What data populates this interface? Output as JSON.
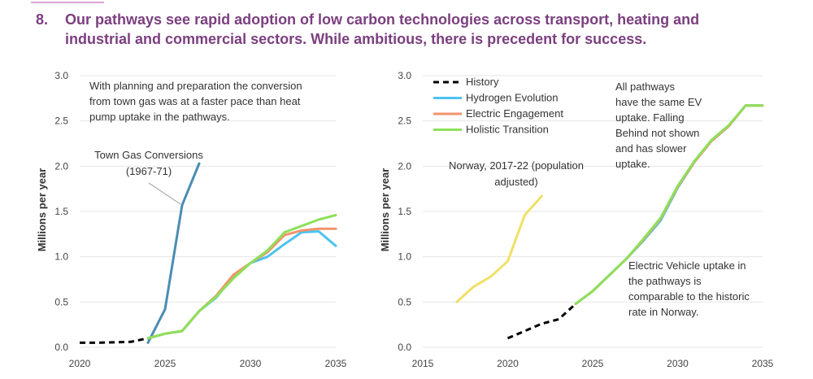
{
  "heading": {
    "number": "8.",
    "text": "Our pathways see rapid adoption of low carbon technologies across transport, heating and industrial and commercial sectors. While ambitious, there is precedent for success."
  },
  "colors": {
    "history": "#000000",
    "town_gas": "#4a8db3",
    "hydrogen": "#4cc3f0",
    "electric": "#f2936b",
    "holistic": "#8ee05a",
    "norway": "#f0e066",
    "grid": "#e6e6e6"
  },
  "chart_data": [
    {
      "type": "line",
      "ylabel": "Millions per year",
      "xlim": [
        2020,
        2035
      ],
      "ylim": [
        0,
        3
      ],
      "xticks": [
        "2020",
        "2025",
        "2030",
        "2035"
      ],
      "yticks": [
        "0.0",
        "0.5",
        "1.0",
        "1.5",
        "2.0",
        "2.5",
        "3.0"
      ],
      "annotations": [
        "With planning and preparation the conversion",
        "from town gas was at a faster pace than heat",
        "pump uptake in the pathways."
      ],
      "town_gas_label": [
        "Town Gas Conversions",
        "(1967-71)"
      ],
      "series": [
        {
          "name": "History",
          "style": "dashed",
          "color_key": "history",
          "x": [
            2020,
            2021,
            2022,
            2023,
            2024
          ],
          "y": [
            0.05,
            0.05,
            0.055,
            0.06,
            0.1
          ]
        },
        {
          "name": "Town Gas Conversions",
          "color_key": "town_gas",
          "x": [
            2024,
            2025,
            2026,
            2027
          ],
          "y": [
            0.05,
            0.42,
            1.57,
            2.03
          ]
        },
        {
          "name": "Hydrogen Evolution",
          "color_key": "hydrogen",
          "x": [
            2024,
            2025,
            2026,
            2027,
            2028,
            2029,
            2030,
            2031,
            2032,
            2033,
            2034,
            2035
          ],
          "y": [
            0.1,
            0.15,
            0.18,
            0.4,
            0.55,
            0.78,
            0.93,
            1.0,
            1.14,
            1.27,
            1.28,
            1.12
          ]
        },
        {
          "name": "Electric Engagement",
          "color_key": "electric",
          "x": [
            2024,
            2025,
            2026,
            2027,
            2028,
            2029,
            2030,
            2031,
            2032,
            2033,
            2034,
            2035
          ],
          "y": [
            0.1,
            0.15,
            0.18,
            0.4,
            0.57,
            0.8,
            0.93,
            1.05,
            1.24,
            1.29,
            1.31,
            1.31
          ]
        },
        {
          "name": "Holistic Transition",
          "color_key": "holistic",
          "x": [
            2024,
            2025,
            2026,
            2027,
            2028,
            2029,
            2030,
            2031,
            2032,
            2033,
            2034,
            2035
          ],
          "y": [
            0.1,
            0.15,
            0.18,
            0.4,
            0.56,
            0.76,
            0.93,
            1.07,
            1.27,
            1.34,
            1.41,
            1.46
          ]
        }
      ]
    },
    {
      "type": "line",
      "ylabel": "Millions per year",
      "xlim": [
        2015,
        2035
      ],
      "ylim": [
        0,
        3
      ],
      "xticks": [
        "2015",
        "2020",
        "2025",
        "2030",
        "2035"
      ],
      "yticks": [
        "0.0",
        "0.5",
        "1.0",
        "1.5",
        "2.0",
        "2.5",
        "3.0"
      ],
      "legend": [
        "History",
        "Hydrogen Evolution",
        "Electric Engagement",
        "Holistic Transition"
      ],
      "annotations_top": [
        "All pathways",
        "have the same EV",
        "uptake. Falling",
        "Behind not shown",
        "and has slower",
        "uptake."
      ],
      "annotations_bottom": [
        "Electric Vehicle uptake in",
        "the pathways is",
        "comparable to the historic",
        "rate in Norway."
      ],
      "norway_label": [
        "Norway, 2017-22 (population",
        "adjusted)"
      ],
      "series": [
        {
          "name": "History",
          "style": "dashed",
          "color_key": "history",
          "x": [
            2020,
            2021,
            2022,
            2023,
            2024
          ],
          "y": [
            0.1,
            0.18,
            0.26,
            0.31,
            0.48
          ]
        },
        {
          "name": "Norway",
          "color_key": "norway",
          "x": [
            2017,
            2018,
            2019,
            2020,
            2021,
            2022
          ],
          "y": [
            0.5,
            0.67,
            0.78,
            0.95,
            1.46,
            1.67
          ]
        },
        {
          "name": "Hydrogen Evolution",
          "color_key": "hydrogen",
          "x": [
            2024,
            2025,
            2026,
            2027,
            2028,
            2029,
            2030,
            2031,
            2032,
            2033,
            2034,
            2035
          ],
          "y": [
            0.48,
            0.62,
            0.8,
            0.98,
            1.18,
            1.4,
            1.76,
            2.05,
            2.28,
            2.44,
            2.67,
            2.67
          ]
        },
        {
          "name": "Electric Engagement",
          "color_key": "electric",
          "x": [
            2024,
            2025,
            2026,
            2027,
            2028,
            2029,
            2030,
            2031,
            2032,
            2033,
            2034,
            2035
          ],
          "y": [
            0.48,
            0.62,
            0.8,
            0.98,
            1.19,
            1.42,
            1.77,
            2.05,
            2.28,
            2.44,
            2.67,
            2.67
          ]
        },
        {
          "name": "Holistic Transition",
          "color_key": "holistic",
          "x": [
            2024,
            2025,
            2026,
            2027,
            2028,
            2029,
            2030,
            2031,
            2032,
            2033,
            2034,
            2035
          ],
          "y": [
            0.48,
            0.62,
            0.8,
            0.98,
            1.2,
            1.43,
            1.78,
            2.06,
            2.29,
            2.45,
            2.67,
            2.67
          ]
        }
      ]
    }
  ]
}
